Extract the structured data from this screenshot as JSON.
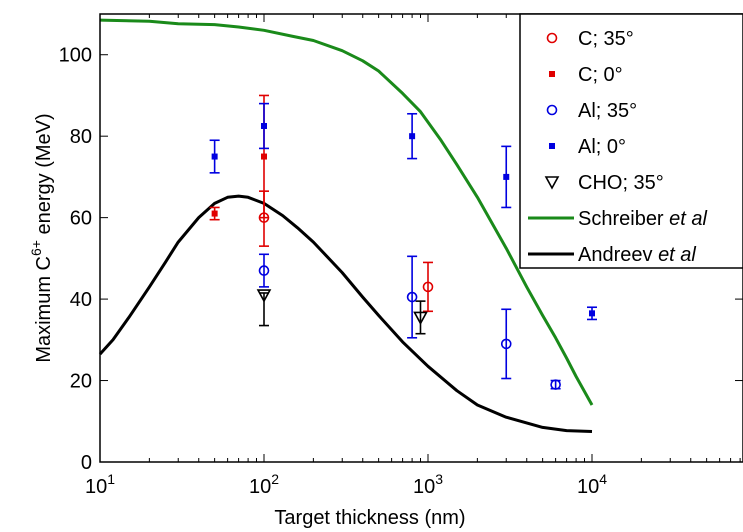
{
  "chart_data": {
    "type": "scatter",
    "title": "",
    "xlabel": "Target thickness (nm)",
    "ylabel": {
      "prefix": "Maximum C",
      "superscript": "6+",
      "suffix": " energy (MeV)"
    },
    "xscale": "log",
    "xlim": [
      10,
      100000
    ],
    "ylim": [
      0,
      110
    ],
    "x_ticks": [
      {
        "value": 10,
        "base": "10",
        "exp": "1"
      },
      {
        "value": 100,
        "base": "10",
        "exp": "2"
      },
      {
        "value": 1000,
        "base": "10",
        "exp": "3"
      },
      {
        "value": 10000,
        "base": "10",
        "exp": "4"
      }
    ],
    "y_ticks": [
      0,
      20,
      40,
      60,
      80,
      100
    ],
    "grid": false,
    "legend_position": "top-right",
    "legend": [
      {
        "series": 0,
        "label": "C; 35°"
      },
      {
        "series": 1,
        "label": "C; 0°"
      },
      {
        "series": 2,
        "label": "Al; 35°"
      },
      {
        "series": 3,
        "label": "Al; 0°"
      },
      {
        "series": 4,
        "label": "CHO; 35°"
      },
      {
        "series": 5,
        "label": "Schreiber ",
        "italic": "et al"
      },
      {
        "series": 6,
        "label": "Andreev ",
        "italic": "et al"
      }
    ],
    "series": [
      {
        "name": "C; 35°",
        "marker": "circle",
        "color": "#e00000",
        "points": [
          {
            "x": 100,
            "y": 60,
            "lo": 53,
            "hi": 66.5
          },
          {
            "x": 1000,
            "y": 43,
            "lo": 37,
            "hi": 49
          }
        ]
      },
      {
        "name": "C; 0°",
        "marker": "square",
        "color": "#e00000",
        "points": [
          {
            "x": 50,
            "y": 61,
            "lo": 59.5,
            "hi": 62.5
          },
          {
            "x": 100,
            "y": 75,
            "lo": 60,
            "hi": 90
          }
        ]
      },
      {
        "name": "Al; 35°",
        "marker": "circle",
        "color": "#0000e0",
        "points": [
          {
            "x": 100,
            "y": 47,
            "lo": 43,
            "hi": 51
          },
          {
            "x": 800,
            "y": 40.5,
            "lo": 30.5,
            "hi": 50.5
          },
          {
            "x": 3000,
            "y": 29,
            "lo": 20.5,
            "hi": 37.5
          },
          {
            "x": 6000,
            "y": 19,
            "lo": 18,
            "hi": 20
          }
        ]
      },
      {
        "name": "Al; 0°",
        "marker": "square",
        "color": "#0000e0",
        "points": [
          {
            "x": 50,
            "y": 75,
            "lo": 71,
            "hi": 79
          },
          {
            "x": 100,
            "y": 82.5,
            "lo": 77,
            "hi": 88
          },
          {
            "x": 800,
            "y": 80,
            "lo": 74.5,
            "hi": 85.5
          },
          {
            "x": 3000,
            "y": 70,
            "lo": 62.5,
            "hi": 77.5
          },
          {
            "x": 10000,
            "y": 36.5,
            "lo": 35,
            "hi": 38
          }
        ]
      },
      {
        "name": "CHO; 35°",
        "marker": "triangle-down",
        "color": "#000000",
        "points": [
          {
            "x": 100,
            "y": 41,
            "lo": 33.5,
            "hi": 41.5
          },
          {
            "x": 900,
            "y": 35.5,
            "lo": 31.5,
            "hi": 39.5
          }
        ]
      },
      {
        "name": "Schreiber et al",
        "type": "line",
        "color": "#1a8a1a",
        "points": [
          {
            "x": 10,
            "y": 108.5
          },
          {
            "x": 20,
            "y": 108.2
          },
          {
            "x": 30,
            "y": 107.6
          },
          {
            "x": 50,
            "y": 107.4
          },
          {
            "x": 70,
            "y": 106.8
          },
          {
            "x": 100,
            "y": 106
          },
          {
            "x": 150,
            "y": 104.5
          },
          {
            "x": 200,
            "y": 103.5
          },
          {
            "x": 300,
            "y": 101
          },
          {
            "x": 400,
            "y": 98.5
          },
          {
            "x": 500,
            "y": 96
          },
          {
            "x": 700,
            "y": 90.5
          },
          {
            "x": 900,
            "y": 86
          },
          {
            "x": 1200,
            "y": 79
          },
          {
            "x": 1500,
            "y": 73
          },
          {
            "x": 2000,
            "y": 65
          },
          {
            "x": 3000,
            "y": 52.5
          },
          {
            "x": 4000,
            "y": 43
          },
          {
            "x": 5000,
            "y": 36
          },
          {
            "x": 6000,
            "y": 30.5
          },
          {
            "x": 7000,
            "y": 25.5
          },
          {
            "x": 8000,
            "y": 21
          },
          {
            "x": 10000,
            "y": 14
          }
        ]
      },
      {
        "name": "Andreev et al",
        "type": "line",
        "color": "#000000",
        "points": [
          {
            "x": 10,
            "y": 26.5
          },
          {
            "x": 12,
            "y": 30
          },
          {
            "x": 15,
            "y": 35.5
          },
          {
            "x": 20,
            "y": 43
          },
          {
            "x": 25,
            "y": 49
          },
          {
            "x": 30,
            "y": 54
          },
          {
            "x": 40,
            "y": 60
          },
          {
            "x": 50,
            "y": 63.5
          },
          {
            "x": 60,
            "y": 65
          },
          {
            "x": 70,
            "y": 65.3
          },
          {
            "x": 80,
            "y": 65
          },
          {
            "x": 100,
            "y": 63.5
          },
          {
            "x": 130,
            "y": 60.5
          },
          {
            "x": 160,
            "y": 57.5
          },
          {
            "x": 200,
            "y": 54
          },
          {
            "x": 300,
            "y": 46.5
          },
          {
            "x": 400,
            "y": 40.5
          },
          {
            "x": 500,
            "y": 36
          },
          {
            "x": 700,
            "y": 29.5
          },
          {
            "x": 1000,
            "y": 23.5
          },
          {
            "x": 1500,
            "y": 17.5
          },
          {
            "x": 2000,
            "y": 14
          },
          {
            "x": 3000,
            "y": 11
          },
          {
            "x": 5000,
            "y": 8.5
          },
          {
            "x": 7000,
            "y": 7.7
          },
          {
            "x": 10000,
            "y": 7.5
          }
        ]
      }
    ]
  }
}
